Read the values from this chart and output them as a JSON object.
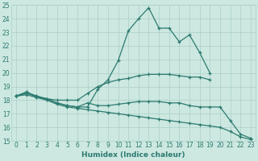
{
  "background_color": "#cce8e0",
  "line_color": "#2d7a70",
  "grid_color": "#aacfc8",
  "xlabel": "Humidex (Indice chaleur)",
  "ylim": [
    15,
    25
  ],
  "xlim": [
    -0.5,
    23.5
  ],
  "yticks": [
    15,
    16,
    17,
    18,
    19,
    20,
    21,
    22,
    23,
    24,
    25
  ],
  "xticks": [
    0,
    1,
    2,
    3,
    4,
    5,
    6,
    7,
    8,
    9,
    10,
    11,
    12,
    13,
    14,
    15,
    16,
    17,
    18,
    19,
    20,
    21,
    22,
    23
  ],
  "lines": [
    {
      "x": [
        0,
        1,
        2,
        3,
        4,
        5,
        6,
        7,
        8,
        9,
        10,
        11,
        12,
        13,
        14,
        15,
        16,
        17,
        18,
        19
      ],
      "y": [
        18.3,
        18.6,
        18.3,
        18.1,
        17.8,
        17.6,
        17.5,
        17.5,
        18.8,
        19.5,
        20.9,
        23.1,
        24.0,
        24.8,
        23.3,
        23.3,
        22.3,
        22.8,
        21.5,
        20.0
      ]
    },
    {
      "x": [
        0,
        1,
        2,
        3,
        4,
        5,
        6,
        7,
        8,
        9,
        10,
        11,
        12,
        13,
        14,
        15,
        16,
        17,
        18,
        19
      ],
      "y": [
        18.3,
        18.6,
        18.2,
        18.1,
        18.0,
        18.0,
        18.0,
        18.5,
        19.0,
        19.3,
        19.5,
        19.6,
        19.8,
        19.9,
        19.9,
        19.9,
        19.8,
        19.7,
        19.7,
        19.5
      ]
    },
    {
      "x": [
        0,
        1,
        2,
        3,
        4,
        5,
        6,
        7,
        8,
        9,
        10,
        11,
        12,
        13,
        14,
        15,
        16,
        17,
        18,
        19,
        20,
        21,
        22,
        23
      ],
      "y": [
        18.3,
        18.5,
        18.3,
        18.1,
        17.8,
        17.6,
        17.5,
        17.8,
        17.6,
        17.6,
        17.7,
        17.8,
        17.9,
        17.9,
        17.9,
        17.8,
        17.8,
        17.6,
        17.5,
        17.5,
        17.5,
        16.5,
        15.5,
        15.2
      ]
    },
    {
      "x": [
        0,
        1,
        2,
        3,
        4,
        5,
        6,
        7,
        8,
        9,
        10,
        11,
        12,
        13,
        14,
        15,
        16,
        17,
        18,
        19,
        20,
        21,
        22,
        23
      ],
      "y": [
        18.3,
        18.4,
        18.2,
        18.0,
        17.7,
        17.5,
        17.4,
        17.3,
        17.2,
        17.1,
        17.0,
        16.9,
        16.8,
        16.7,
        16.6,
        16.5,
        16.4,
        16.3,
        16.2,
        16.1,
        16.0,
        15.7,
        15.3,
        15.1
      ]
    }
  ]
}
